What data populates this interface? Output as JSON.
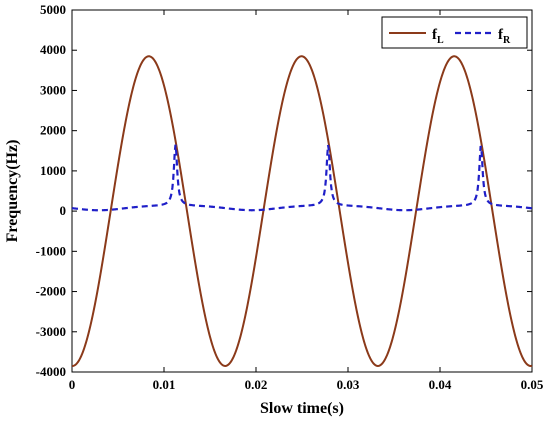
{
  "chart_data": {
    "type": "line",
    "xlabel": "Slow time(s)",
    "ylabel": "Frequency(Hz)",
    "xlim": [
      0,
      0.05
    ],
    "ylim": [
      -4000,
      5000
    ],
    "xticks": [
      0,
      0.01,
      0.02,
      0.03,
      0.04,
      0.05
    ],
    "xtick_labels": [
      "0",
      "0.01",
      "0.02",
      "0.03",
      "0.04",
      "0.05"
    ],
    "yticks": [
      -4000,
      -3000,
      -2000,
      -1000,
      0,
      1000,
      2000,
      3000,
      4000,
      5000
    ],
    "ytick_labels": [
      "-4000",
      "-3000",
      "-2000",
      "-1000",
      "0",
      "1000",
      "2000",
      "3000",
      "4000",
      "5000"
    ],
    "grid": false,
    "legend": {
      "placement": "top-right"
    },
    "colors": {
      "fL": "#8b3a1a",
      "fR": "#1f1fc8",
      "axis": "#000000"
    },
    "series": [
      {
        "key": "fL",
        "legend_main": "f",
        "legend_sub": "L",
        "style": "solid",
        "model": "sinusoid",
        "amplitude": 3850,
        "period": 0.0166,
        "peak_time": 0.00835
      },
      {
        "key": "fR",
        "legend_main": "f",
        "legend_sub": "R",
        "style": "dashed",
        "model": "periodic-peaks",
        "baseline": 130,
        "dip": 110,
        "peak_value": 1650,
        "peak_times": [
          0.01125,
          0.02785,
          0.04445
        ]
      }
    ]
  }
}
